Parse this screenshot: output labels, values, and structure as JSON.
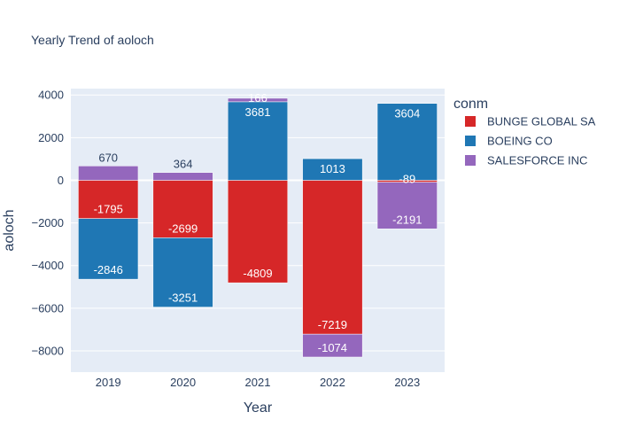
{
  "chart_data": {
    "type": "bar",
    "barmode": "relative",
    "title": "Yearly Trend of aoloch",
    "xlabel": "Year",
    "ylabel": "aoloch",
    "categories": [
      "2019",
      "2020",
      "2021",
      "2022",
      "2023"
    ],
    "ylim": [
      -9000,
      4300
    ],
    "yticks": [
      -8000,
      -6000,
      -4000,
      -2000,
      0,
      2000,
      4000
    ],
    "ytick_labels": [
      "−8000",
      "−6000",
      "−4000",
      "−2000",
      "0",
      "2000",
      "4000"
    ],
    "legend_title": "conm",
    "series": [
      {
        "name": "BUNGE GLOBAL SA",
        "color": "#d62728",
        "values": [
          -1795,
          -2699,
          -4809,
          -7219,
          -89
        ],
        "labels": [
          "-1795",
          "-2699",
          "-4809",
          "-7219",
          "-89"
        ]
      },
      {
        "name": "BOEING CO",
        "color": "#1f77b4",
        "values": [
          -2846,
          -3251,
          3681,
          1013,
          3604
        ],
        "labels": [
          "-2846",
          "-3251",
          "3681",
          "1013",
          "3604"
        ]
      },
      {
        "name": "SALESFORCE INC",
        "color": "#9467bd",
        "values": [
          670,
          364,
          166,
          -1074,
          -2191
        ],
        "labels": [
          "670",
          "364",
          "166",
          "-1074",
          "-2191"
        ]
      }
    ]
  }
}
